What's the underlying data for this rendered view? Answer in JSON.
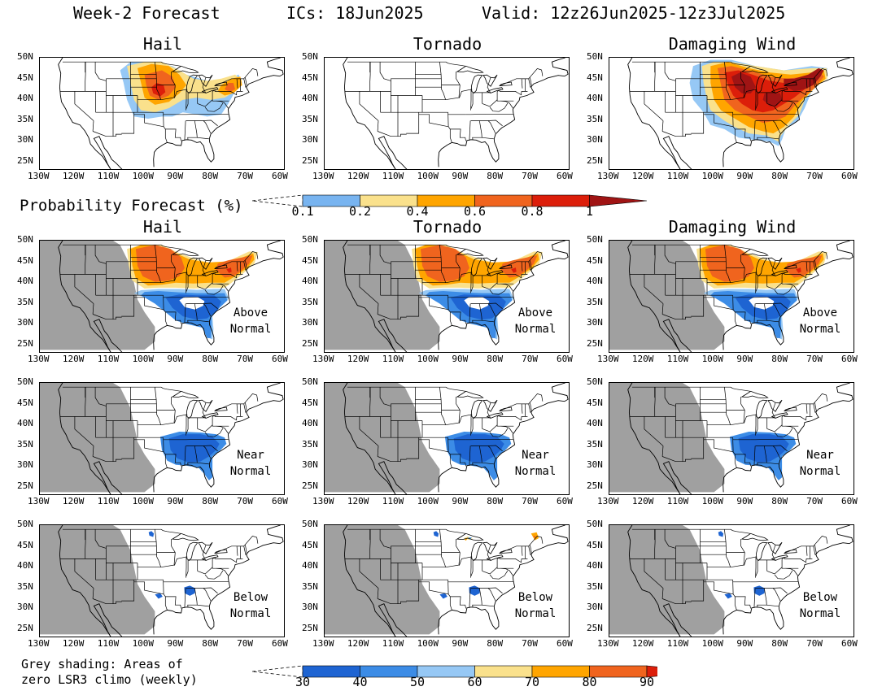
{
  "header": {
    "forecast": "Week-2 Forecast",
    "ics": "ICs: 18Jun2025",
    "valid": "Valid: 12z26Jun2025-12z3Jul2025"
  },
  "hazards": [
    "Hail",
    "Tornado",
    "Damaging Wind"
  ],
  "lat_ticks": [
    "50N",
    "45N",
    "40N",
    "35N",
    "30N",
    "25N"
  ],
  "lon_ticks": [
    "130W",
    "120W",
    "110W",
    "100W",
    "90W",
    "80W",
    "70W",
    "60W"
  ],
  "prob_legend": {
    "title": "Probability Forecast (%)",
    "labels": [
      "0.1",
      "0.2",
      "0.4",
      "0.6",
      "0.8",
      "1"
    ],
    "colors": [
      "#78b4f0",
      "#fae18c",
      "#ffa500",
      "#f0641e",
      "#dc1e0a",
      "#a01414"
    ]
  },
  "rows": [
    {
      "annotation": [
        "",
        ""
      ]
    },
    {
      "annotation": [
        "Above",
        "Normal"
      ]
    },
    {
      "annotation": [
        "Near",
        "Normal"
      ]
    },
    {
      "annotation": [
        "Below",
        "Normal"
      ]
    }
  ],
  "pct_legend": {
    "labels": [
      "30",
      "40",
      "50",
      "60",
      "70",
      "80",
      "90"
    ],
    "colors": [
      "#1e64d2",
      "#3c8ce6",
      "#96c8f5",
      "#fae18c",
      "#ffa500",
      "#f0641e",
      "#dc1e0a"
    ]
  },
  "grey_note": [
    "Grey shading: Areas of",
    "zero LSR3 climo (weekly)"
  ],
  "colors": {
    "grey": "#a0a0a0",
    "blue": "#3c8ce6",
    "dark_blue": "#1e64d2",
    "light_blue": "#96c8f5",
    "yellow": "#fae18c",
    "orange": "#ffa500",
    "red_orange": "#f0641e",
    "red": "#dc1e0a",
    "dark_red": "#a01414"
  }
}
